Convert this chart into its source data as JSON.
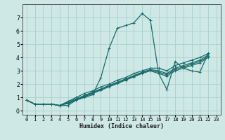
{
  "title": "",
  "xlabel": "Humidex (Indice chaleur)",
  "ylabel": "",
  "bg_color": "#cde8e5",
  "line_color": "#1a6b6b",
  "grid_color": "#aacfcc",
  "x_data": [
    0,
    1,
    2,
    3,
    4,
    5,
    6,
    7,
    8,
    9,
    10,
    11,
    12,
    13,
    14,
    15,
    16,
    17,
    18,
    19,
    20,
    21,
    22,
    23
  ],
  "series": [
    [
      0.8,
      0.5,
      0.5,
      0.5,
      0.4,
      0.4,
      0.8,
      1.0,
      1.2,
      2.5,
      4.7,
      6.2,
      6.4,
      6.6,
      7.3,
      6.8,
      2.8,
      1.6,
      3.7,
      3.2,
      3.0,
      2.9,
      4.3,
      null
    ],
    [
      0.8,
      0.5,
      0.5,
      0.5,
      0.4,
      0.7,
      1.0,
      1.3,
      1.5,
      1.8,
      2.0,
      2.3,
      2.5,
      2.8,
      3.0,
      3.2,
      3.2,
      3.0,
      3.4,
      3.6,
      3.8,
      4.0,
      4.3,
      null
    ],
    [
      0.8,
      0.5,
      0.5,
      0.5,
      0.4,
      0.65,
      0.9,
      1.15,
      1.4,
      1.65,
      1.9,
      2.15,
      2.4,
      2.65,
      2.9,
      3.1,
      3.0,
      2.8,
      3.2,
      3.4,
      3.6,
      3.8,
      4.2,
      null
    ],
    [
      0.8,
      0.5,
      0.5,
      0.5,
      0.4,
      0.6,
      0.85,
      1.1,
      1.35,
      1.6,
      1.85,
      2.1,
      2.35,
      2.6,
      2.85,
      3.05,
      2.9,
      2.7,
      3.1,
      3.3,
      3.5,
      3.7,
      4.1,
      null
    ],
    [
      0.8,
      0.5,
      0.5,
      0.5,
      0.4,
      0.55,
      0.8,
      1.05,
      1.3,
      1.55,
      1.8,
      2.05,
      2.3,
      2.55,
      2.8,
      3.0,
      2.8,
      2.6,
      3.0,
      3.2,
      3.4,
      3.6,
      4.0,
      null
    ]
  ],
  "yticks": [
    0,
    1,
    2,
    3,
    4,
    5,
    6,
    7
  ],
  "xticks": [
    0,
    1,
    2,
    3,
    4,
    5,
    6,
    7,
    8,
    9,
    10,
    11,
    12,
    13,
    14,
    15,
    16,
    17,
    18,
    19,
    20,
    21,
    22,
    23
  ],
  "xlim": [
    -0.5,
    23.5
  ],
  "ylim": [
    -0.3,
    8.0
  ],
  "marker": "+",
  "markersize": 3,
  "linewidth": 0.9,
  "xlabel_fontsize": 6.0,
  "tick_fontsize": 5.0,
  "ytick_fontsize": 5.5
}
